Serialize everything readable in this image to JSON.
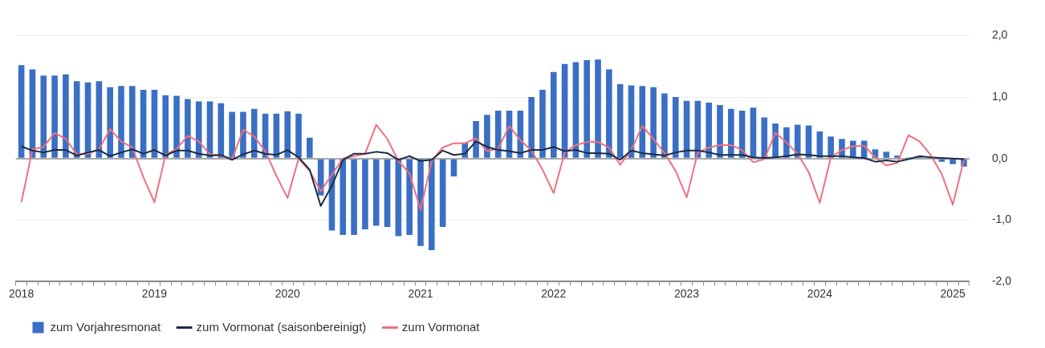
{
  "chart_data": {
    "type": "bar",
    "categories": [
      "2018",
      null,
      null,
      null,
      null,
      null,
      null,
      null,
      null,
      null,
      null,
      null,
      "2019",
      null,
      null,
      null,
      null,
      null,
      null,
      null,
      null,
      null,
      null,
      null,
      "2020",
      null,
      null,
      null,
      null,
      null,
      null,
      null,
      null,
      null,
      null,
      null,
      "2021",
      null,
      null,
      null,
      null,
      null,
      null,
      null,
      null,
      null,
      null,
      null,
      "2022",
      null,
      null,
      null,
      null,
      null,
      null,
      null,
      null,
      null,
      null,
      null,
      "2023",
      null,
      null,
      null,
      null,
      null,
      null,
      null,
      null,
      null,
      null,
      null,
      "2024",
      null,
      null,
      null,
      null,
      null,
      null,
      null,
      null,
      null,
      null,
      null,
      "2025",
      null
    ],
    "series": [
      {
        "name": "zum Vorjahresmonat",
        "color": "#3a6fc4",
        "values": [
          1.52,
          1.45,
          1.35,
          1.35,
          1.37,
          1.26,
          1.24,
          1.26,
          1.16,
          1.18,
          1.18,
          1.12,
          1.12,
          1.03,
          1.02,
          0.97,
          0.93,
          0.93,
          0.9,
          0.76,
          0.76,
          0.81,
          0.73,
          0.73,
          0.77,
          0.73,
          0.34,
          -0.6,
          -1.17,
          -1.24,
          -1.24,
          -1.15,
          -1.09,
          -1.11,
          -1.26,
          -1.24,
          -1.42,
          -1.49,
          -1.11,
          -0.29,
          0.26,
          0.61,
          0.71,
          0.78,
          0.78,
          0.78,
          1.0,
          1.12,
          1.41,
          1.54,
          1.57,
          1.6,
          1.61,
          1.45,
          1.21,
          1.19,
          1.18,
          1.16,
          1.06,
          1.0,
          0.94,
          0.94,
          0.91,
          0.87,
          0.81,
          0.78,
          0.83,
          0.67,
          0.57,
          0.51,
          0.55,
          0.54,
          0.44,
          0.36,
          0.32,
          0.29,
          0.29,
          0.15,
          0.11,
          0.05,
          0.02,
          0.03,
          0.01,
          -0.05,
          -0.09,
          -0.13
        ]
      },
      {
        "name": "zum Vormonat (saisonbereinigt)",
        "type": "line",
        "color": "#1c2b45",
        "values": [
          0.2,
          0.13,
          0.1,
          0.14,
          0.14,
          0.05,
          0.1,
          0.14,
          0.04,
          0.1,
          0.15,
          0.08,
          0.14,
          0.05,
          0.13,
          0.13,
          0.08,
          0.05,
          0.06,
          -0.02,
          0.07,
          0.13,
          0.08,
          0.06,
          0.14,
          0.02,
          -0.18,
          -0.77,
          -0.44,
          -0.02,
          0.08,
          0.08,
          0.11,
          0.09,
          -0.02,
          0.04,
          -0.04,
          -0.02,
          0.13,
          0.06,
          0.08,
          0.28,
          0.19,
          0.14,
          0.12,
          0.09,
          0.14,
          0.14,
          0.19,
          0.12,
          0.14,
          0.09,
          0.09,
          0.08,
          -0.02,
          0.13,
          0.09,
          0.07,
          0.05,
          0.1,
          0.13,
          0.13,
          0.1,
          0.06,
          0.06,
          0.06,
          0.02,
          0.01,
          0.02,
          0.04,
          0.07,
          0.06,
          0.04,
          0.04,
          0.04,
          0.02,
          0.01,
          -0.05,
          -0.03,
          -0.05,
          -0.01,
          0.04,
          0.02,
          0.01,
          0.0,
          -0.01
        ]
      },
      {
        "name": "zum Vormonat",
        "type": "line",
        "color": "#f07080",
        "values": [
          -0.71,
          0.15,
          0.19,
          0.42,
          0.32,
          0.07,
          0.08,
          0.15,
          0.48,
          0.28,
          0.18,
          -0.3,
          -0.71,
          0.06,
          0.16,
          0.37,
          0.28,
          0.07,
          0.05,
          -0.01,
          0.47,
          0.36,
          0.12,
          -0.28,
          -0.64,
          0.0,
          -0.2,
          -0.53,
          -0.26,
          0.0,
          0.04,
          0.08,
          0.55,
          0.32,
          -0.04,
          -0.24,
          -0.83,
          -0.04,
          0.18,
          0.25,
          0.25,
          0.33,
          0.12,
          0.16,
          0.53,
          0.3,
          0.13,
          -0.18,
          -0.56,
          0.1,
          0.22,
          0.27,
          0.27,
          0.18,
          -0.1,
          0.14,
          0.53,
          0.32,
          0.09,
          -0.2,
          -0.63,
          0.1,
          0.18,
          0.22,
          0.22,
          0.14,
          -0.06,
          -0.01,
          0.42,
          0.26,
          0.08,
          -0.22,
          -0.72,
          0.02,
          0.14,
          0.2,
          0.21,
          0.02,
          -0.11,
          -0.07,
          0.38,
          0.28,
          0.06,
          -0.25,
          -0.75,
          -0.02
        ]
      }
    ],
    "ylim": [
      -2,
      2
    ],
    "yticks": [
      {
        "value": -2,
        "label": "-2,0"
      },
      {
        "value": -1,
        "label": "-1,0"
      },
      {
        "value": 0,
        "label": "0,0"
      },
      {
        "value": 1,
        "label": "1,0"
      },
      {
        "value": 2,
        "label": "2,0"
      }
    ],
    "grid": "y",
    "legend": "bottom left",
    "marker": "none",
    "line_style": "solid"
  }
}
